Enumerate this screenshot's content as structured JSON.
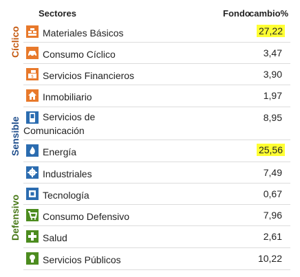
{
  "header": {
    "sectores": "Sectores",
    "fondo": "Fondo",
    "cambio": "cambio%"
  },
  "groups": [
    {
      "label": "Cíclico",
      "color": "#c55a11"
    },
    {
      "label": "Sensible",
      "color": "#1f4e8c"
    },
    {
      "label": "Defensivo",
      "color": "#4a7a1a"
    }
  ],
  "rows": [
    {
      "label": "Materiales Básicos",
      "value": "27,22",
      "highlight": true,
      "icon": "materials-icon",
      "color": "#e8792b"
    },
    {
      "label": "Consumo Cíclico",
      "value": "3,47",
      "highlight": false,
      "icon": "car-icon",
      "color": "#e8792b"
    },
    {
      "label": "Servicios Financieros",
      "value": "3,90",
      "highlight": false,
      "icon": "finance-icon",
      "color": "#e8792b"
    },
    {
      "label": "Inmobiliario",
      "value": "1,97",
      "highlight": false,
      "icon": "house-icon",
      "color": "#e8792b"
    },
    {
      "label": "Servicios de Comunicación",
      "value": "8,95",
      "highlight": false,
      "icon": "phone-icon",
      "color": "#2b6cb0"
    },
    {
      "label": "Energía",
      "value": "25,56",
      "highlight": true,
      "icon": "flame-icon",
      "color": "#2b6cb0"
    },
    {
      "label": "Industriales",
      "value": "7,49",
      "highlight": false,
      "icon": "gear-icon",
      "color": "#2b6cb0"
    },
    {
      "label": "Tecnología",
      "value": "0,67",
      "highlight": false,
      "icon": "chip-icon",
      "color": "#2b6cb0"
    },
    {
      "label": "Consumo Defensivo",
      "value": "7,96",
      "highlight": false,
      "icon": "cart-icon",
      "color": "#4c8c1f"
    },
    {
      "label": "Salud",
      "value": "2,61",
      "highlight": false,
      "icon": "health-cross-icon",
      "color": "#4c8c1f"
    },
    {
      "label": "Servicios Públicos",
      "value": "10,22",
      "highlight": false,
      "icon": "bulb-icon",
      "color": "#4c8c1f"
    }
  ]
}
